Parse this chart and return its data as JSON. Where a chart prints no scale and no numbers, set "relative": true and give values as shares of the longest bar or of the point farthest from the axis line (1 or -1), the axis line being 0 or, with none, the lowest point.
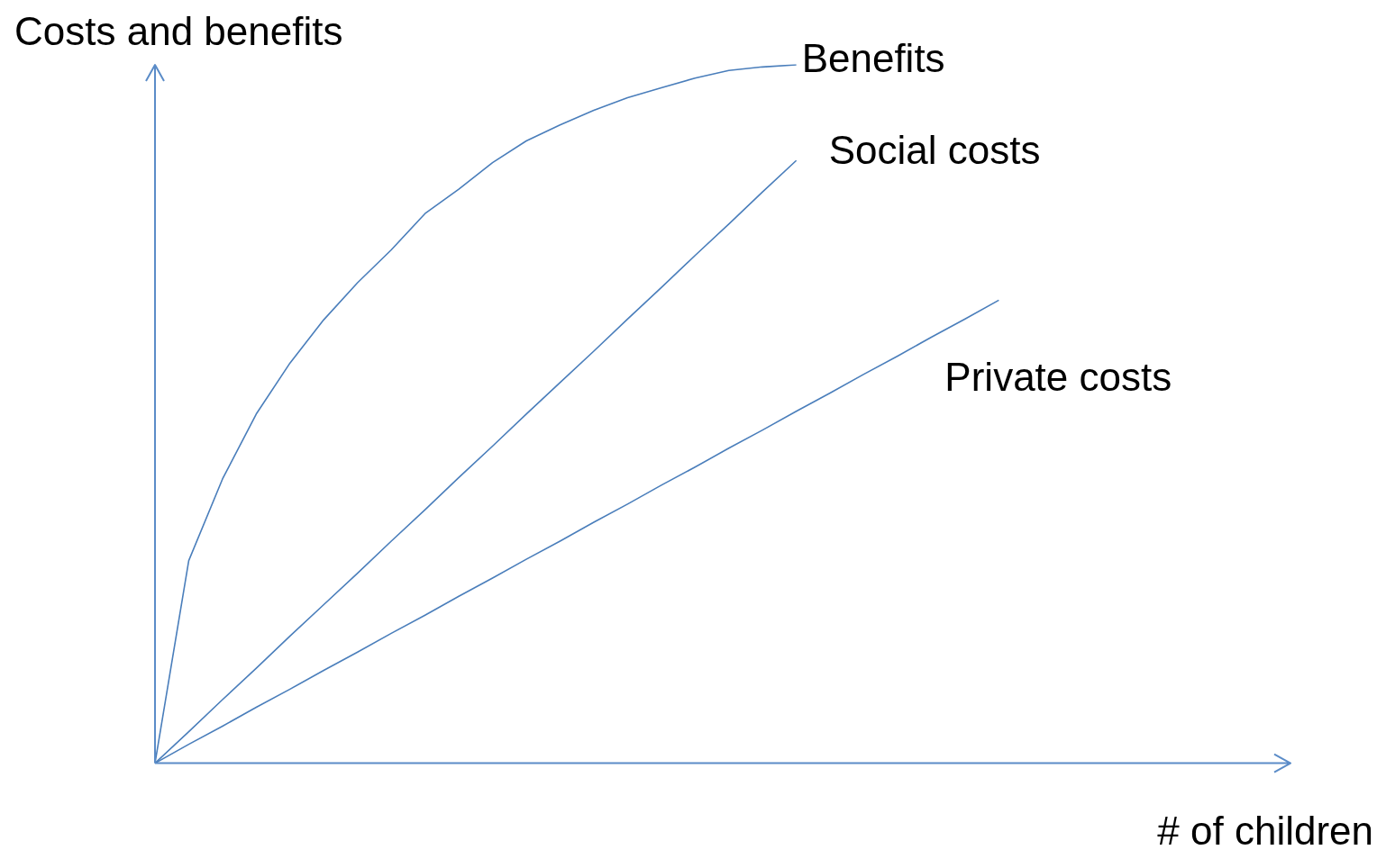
{
  "chart_data": {
    "type": "line",
    "relative": true,
    "xlabel": "# of children",
    "ylabel": "Costs and benefits",
    "grid": false,
    "legend": false,
    "marker": "none",
    "line_style": "solid",
    "categories": [
      null,
      null,
      null,
      null,
      null,
      null,
      null,
      null,
      null,
      null,
      null,
      null,
      null,
      null,
      null,
      null,
      null,
      null,
      null,
      null,
      null,
      null,
      null,
      null,
      null,
      null,
      null,
      null,
      null,
      null,
      null,
      null,
      null,
      null
    ],
    "series": [
      {
        "name": "Benefits",
        "color": "#4a7ebb",
        "values": [
          0,
          0.29,
          0.407,
          0.5,
          0.573,
          0.635,
          0.688,
          0.735,
          0.787,
          0.822,
          0.86,
          0.891,
          0.914,
          0.935,
          0.953,
          0.967,
          0.981,
          0.992,
          0.997,
          1,
          null,
          null,
          null,
          null,
          null,
          null,
          null,
          null,
          null,
          null,
          null,
          null,
          null,
          null
        ]
      },
      {
        "name": "Social costs",
        "color": "#4a7ebb",
        "values": [
          0,
          0.045,
          0.091,
          0.136,
          0.182,
          0.227,
          0.272,
          0.318,
          0.363,
          0.409,
          0.454,
          0.5,
          0.545,
          0.59,
          0.636,
          0.681,
          0.727,
          0.772,
          0.818,
          0.863,
          null,
          null,
          null,
          null,
          null,
          null,
          null,
          null,
          null,
          null,
          null,
          null,
          null,
          null
        ]
      },
      {
        "name": "Private costs",
        "color": "#4a7ebb",
        "values": [
          0,
          0.027,
          0.053,
          0.08,
          0.106,
          0.133,
          0.159,
          0.186,
          0.212,
          0.239,
          0.265,
          0.292,
          0.318,
          0.345,
          0.371,
          0.398,
          0.424,
          0.451,
          0.477,
          0.504,
          0.53,
          0.557,
          0.583,
          0.61,
          0.636,
          0.663,
          null,
          null,
          null,
          null,
          null,
          null,
          null,
          null
        ]
      }
    ]
  }
}
